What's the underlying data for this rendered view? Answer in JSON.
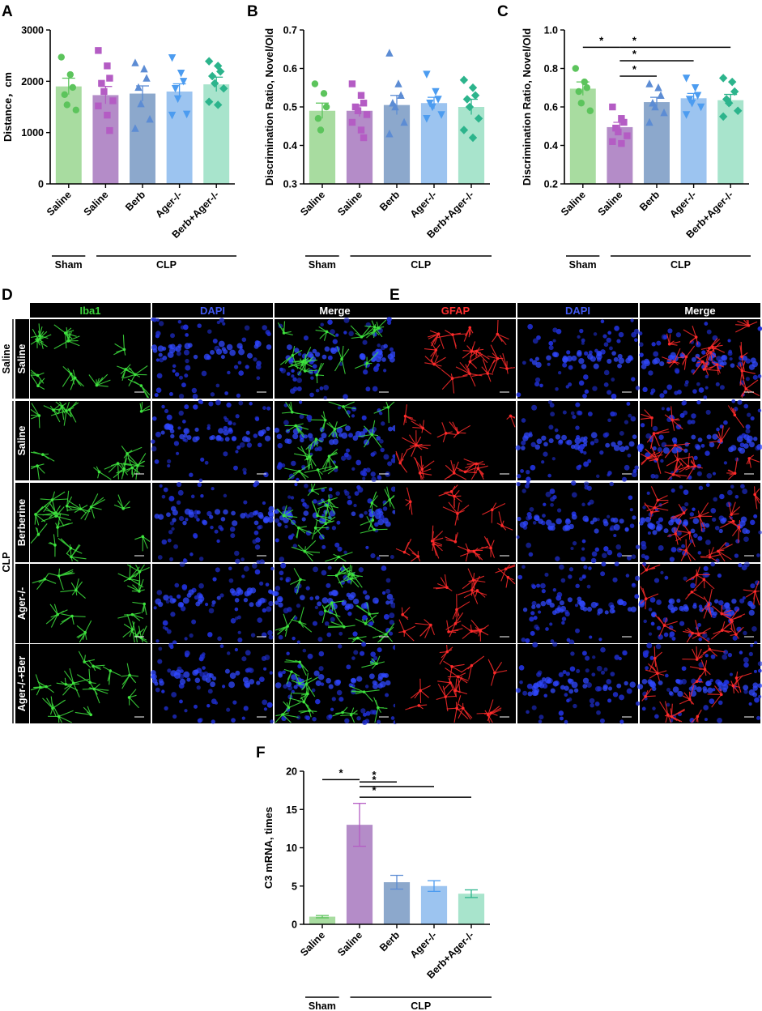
{
  "colors": {
    "sham_saline": "#5cc45c",
    "clp_saline": "#b45cc4",
    "berb": "#5c8cd4",
    "ager": "#4c9cf0",
    "berb_ager": "#2cb48c",
    "bar_sham": "#a8dca0",
    "bar_saline": "#b48cc8",
    "bar_berb": "#8ca8cc",
    "bar_ager": "#9cc4f0",
    "bar_berb_ager": "#a8e4cc",
    "iba1_label": "#3cd23c",
    "dapi_label": "#4058f0",
    "gfap_label": "#ff3030"
  },
  "groups": {
    "sham": "Sham",
    "clp": "CLP"
  },
  "chart_data": [
    {
      "panel": "A",
      "type": "bar",
      "categories": [
        "Saline",
        "Saline",
        "Berb",
        "Ager-/-",
        "Berb+Ager-/-"
      ],
      "values": [
        1900,
        1730,
        1760,
        1800,
        1940
      ],
      "errors": [
        160,
        170,
        150,
        150,
        140
      ],
      "points": [
        [
          2470,
          2130,
          1880,
          1740,
          1540,
          1440
        ],
        [
          2600,
          2300,
          2060,
          1960,
          1800,
          1620,
          1520,
          1340,
          1040
        ],
        [
          2360,
          2240,
          2060,
          1880,
          1560,
          1260,
          1080
        ],
        [
          2460,
          2160,
          2000,
          1860,
          1660,
          1360,
          1340
        ],
        [
          2390,
          2300,
          2190,
          2100,
          1960,
          1860,
          1600,
          1540
        ]
      ],
      "ylabel": "Distance，cm",
      "yticks": [
        "0",
        "1000",
        "2000",
        "3000"
      ],
      "ylim": [
        0,
        3000
      ],
      "significance": []
    },
    {
      "panel": "B",
      "type": "bar",
      "categories": [
        "Saline",
        "Saline",
        "Berb",
        "Ager-/-",
        "Berb+Ager-/-"
      ],
      "values": [
        0.49,
        0.49,
        0.505,
        0.51,
        0.5
      ],
      "errors": [
        0.02,
        0.015,
        0.025,
        0.015,
        0.02
      ],
      "points": [
        [
          0.56,
          0.535,
          0.5,
          0.47,
          0.44
        ],
        [
          0.56,
          0.53,
          0.51,
          0.5,
          0.49,
          0.48,
          0.46,
          0.44,
          0.42
        ],
        [
          0.64,
          0.56,
          0.53,
          0.51,
          0.5,
          0.46,
          0.43
        ],
        [
          0.585,
          0.54,
          0.52,
          0.51,
          0.5,
          0.48,
          0.47
        ],
        [
          0.57,
          0.55,
          0.53,
          0.52,
          0.5,
          0.47,
          0.44,
          0.42
        ]
      ],
      "ylabel": "Discrimination Ratio, Novel/Old",
      "yticks": [
        "0.3",
        "0.4",
        "0.5",
        "0.6",
        "0.7"
      ],
      "ylim": [
        0.3,
        0.7
      ],
      "significance": []
    },
    {
      "panel": "C",
      "type": "bar",
      "categories": [
        "Saline",
        "Saline",
        "Berb",
        "Ager-/-",
        "Berb+Ager-/-"
      ],
      "values": [
        0.695,
        0.495,
        0.625,
        0.645,
        0.635
      ],
      "errors": [
        0.035,
        0.025,
        0.025,
        0.025,
        0.03
      ],
      "points": [
        [
          0.8,
          0.73,
          0.7,
          0.68,
          0.62,
          0.58
        ],
        [
          0.6,
          0.54,
          0.52,
          0.49,
          0.47,
          0.45,
          0.42,
          0.41
        ],
        [
          0.72,
          0.7,
          0.66,
          0.62,
          0.6,
          0.57,
          0.52
        ],
        [
          0.75,
          0.7,
          0.66,
          0.64,
          0.62,
          0.6,
          0.56
        ],
        [
          0.75,
          0.73,
          0.68,
          0.64,
          0.62,
          0.58,
          0.55
        ]
      ],
      "ylabel": "Discrimination Ratio, Novel/Old",
      "yticks": [
        "0.2",
        "0.4",
        "0.6",
        "0.8",
        "1.0"
      ],
      "ylim": [
        0.2,
        1.0
      ],
      "significance": [
        {
          "from": 0,
          "to": 1,
          "y": 0.91,
          "label": "*"
        },
        {
          "from": 1,
          "to": 4,
          "y": 0.91,
          "label": "*"
        },
        {
          "from": 1,
          "to": 3,
          "y": 0.84,
          "label": "*"
        },
        {
          "from": 1,
          "to": 2,
          "y": 0.76,
          "label": "*"
        }
      ]
    },
    {
      "panel": "F",
      "type": "bar",
      "categories": [
        "Saline",
        "Saline",
        "Berb",
        "Ager-/-",
        "Berb+Ager-/-"
      ],
      "values": [
        1.0,
        13.0,
        5.5,
        5.0,
        4.0
      ],
      "errors": [
        0.15,
        2.8,
        0.9,
        0.7,
        0.5
      ],
      "points": [],
      "ylabel": "C3 mRNA, times",
      "yticks": [
        "0",
        "5",
        "10",
        "15",
        "20"
      ],
      "ylim": [
        0,
        20
      ],
      "significance": [
        {
          "from": 0,
          "to": 1,
          "y": 18.9,
          "label": "*"
        },
        {
          "from": 1,
          "to": 2,
          "y": 18.6,
          "label": "*"
        },
        {
          "from": 1,
          "to": 3,
          "y": 18.0,
          "label": "*"
        },
        {
          "from": 1,
          "to": 4,
          "y": 16.6,
          "label": "*"
        }
      ]
    }
  ],
  "panel_D": {
    "label": "D",
    "columns": [
      "Iba1",
      "DAPI",
      "Merge"
    ],
    "stains": [
      "green",
      "dapi",
      "merge_green"
    ]
  },
  "panel_E": {
    "label": "E",
    "columns": [
      "GFAP",
      "DAPI",
      "Merge"
    ],
    "stains": [
      "red",
      "dapi",
      "merge_red"
    ]
  },
  "row_groups": [
    "Saline",
    "CLP"
  ],
  "row_labels": [
    "Saline",
    "Saline",
    "Berberine",
    "Ager-/-",
    "Ager-/-+Ber"
  ]
}
